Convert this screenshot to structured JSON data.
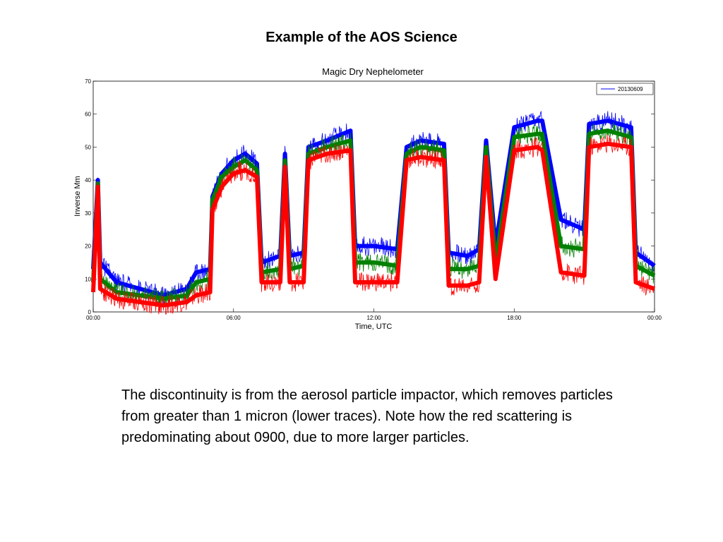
{
  "slide": {
    "title": "Example of the AOS Science",
    "caption": "The discontinuity is from the aerosol particle impactor, which removes particles from greater than 1 micron (lower traces). Note how the red scattering is predominating about 0900, due to more larger particles."
  },
  "chart_data": {
    "type": "line",
    "title": "Magic Dry Nephelometer",
    "xlabel": "Time, UTC",
    "ylabel": "Inverse Mm",
    "xlim": [
      0,
      24
    ],
    "ylim": [
      0,
      70
    ],
    "x_ticks": [
      {
        "value": 0,
        "label": "00:00"
      },
      {
        "value": 6,
        "label": "06:00"
      },
      {
        "value": 12,
        "label": "12:00"
      },
      {
        "value": 18,
        "label": "18:00"
      },
      {
        "value": 24,
        "label": "00:00"
      }
    ],
    "y_ticks": [
      0,
      10,
      20,
      30,
      40,
      50,
      60,
      70
    ],
    "legend": {
      "entries": [
        "20130609"
      ],
      "position": "top-right"
    },
    "colors": {
      "blue": "#0000ff",
      "green": "#008000",
      "red": "#ff0000"
    },
    "series": [
      {
        "color": "blue",
        "points": [
          [
            0,
            13
          ],
          [
            0.2,
            40
          ],
          [
            0.3,
            15
          ],
          [
            1,
            9
          ],
          [
            2,
            7
          ],
          [
            3,
            5
          ],
          [
            4,
            7
          ],
          [
            4.4,
            12
          ],
          [
            5,
            13
          ],
          [
            5.1,
            35
          ],
          [
            5.5,
            42
          ],
          [
            6,
            46
          ],
          [
            6.5,
            48
          ],
          [
            7,
            45
          ],
          [
            7.2,
            15
          ],
          [
            8,
            17
          ],
          [
            8.2,
            48
          ],
          [
            8.4,
            17
          ],
          [
            9,
            18
          ],
          [
            9.2,
            50
          ],
          [
            10,
            52
          ],
          [
            11,
            55
          ],
          [
            11.2,
            20
          ],
          [
            12,
            20
          ],
          [
            13,
            19
          ],
          [
            13.4,
            50
          ],
          [
            14,
            52
          ],
          [
            15,
            51
          ],
          [
            15.2,
            18
          ],
          [
            16,
            17
          ],
          [
            16.5,
            19
          ],
          [
            16.8,
            52
          ],
          [
            17.2,
            20
          ],
          [
            18,
            56
          ],
          [
            19,
            58
          ],
          [
            19.2,
            58
          ],
          [
            20,
            28
          ],
          [
            21,
            25
          ],
          [
            21.2,
            57
          ],
          [
            22,
            58
          ],
          [
            23,
            56
          ],
          [
            23.2,
            18
          ],
          [
            24,
            14
          ]
        ]
      },
      {
        "color": "green",
        "points": [
          [
            0,
            9
          ],
          [
            0.2,
            39
          ],
          [
            0.3,
            10
          ],
          [
            1,
            6
          ],
          [
            2,
            5
          ],
          [
            3,
            4
          ],
          [
            4,
            5
          ],
          [
            4.4,
            9
          ],
          [
            5,
            10
          ],
          [
            5.1,
            34
          ],
          [
            5.5,
            41
          ],
          [
            6,
            44
          ],
          [
            6.5,
            46
          ],
          [
            7,
            43
          ],
          [
            7.2,
            12
          ],
          [
            8,
            13
          ],
          [
            8.2,
            46
          ],
          [
            8.4,
            13
          ],
          [
            9,
            14
          ],
          [
            9.2,
            48
          ],
          [
            10,
            50
          ],
          [
            11,
            52
          ],
          [
            11.2,
            15
          ],
          [
            12,
            15
          ],
          [
            13,
            14
          ],
          [
            13.4,
            48
          ],
          [
            14,
            50
          ],
          [
            15,
            49
          ],
          [
            15.2,
            13
          ],
          [
            16,
            13
          ],
          [
            16.5,
            14
          ],
          [
            16.8,
            50
          ],
          [
            17.2,
            15
          ],
          [
            18,
            53
          ],
          [
            19,
            54
          ],
          [
            19.2,
            54
          ],
          [
            20,
            20
          ],
          [
            21,
            19
          ],
          [
            21.2,
            54
          ],
          [
            22,
            55
          ],
          [
            23,
            53
          ],
          [
            23.2,
            14
          ],
          [
            24,
            11
          ]
        ]
      },
      {
        "color": "red",
        "points": [
          [
            0,
            6
          ],
          [
            0.2,
            38
          ],
          [
            0.3,
            7
          ],
          [
            1,
            4
          ],
          [
            2,
            3
          ],
          [
            3,
            2
          ],
          [
            4,
            3
          ],
          [
            4.4,
            5
          ],
          [
            5,
            6
          ],
          [
            5.1,
            31
          ],
          [
            5.5,
            38
          ],
          [
            6,
            42
          ],
          [
            6.5,
            43
          ],
          [
            7,
            41
          ],
          [
            7.2,
            9
          ],
          [
            8,
            9
          ],
          [
            8.2,
            44
          ],
          [
            8.4,
            9
          ],
          [
            9,
            9
          ],
          [
            9.2,
            46
          ],
          [
            10,
            48
          ],
          [
            11,
            49
          ],
          [
            11.2,
            9
          ],
          [
            12,
            9
          ],
          [
            13,
            9
          ],
          [
            13.4,
            46
          ],
          [
            14,
            47
          ],
          [
            15,
            46
          ],
          [
            15.2,
            8
          ],
          [
            16,
            8
          ],
          [
            16.5,
            9
          ],
          [
            16.8,
            47
          ],
          [
            17.2,
            10
          ],
          [
            18,
            49
          ],
          [
            19,
            50
          ],
          [
            19.2,
            49
          ],
          [
            20,
            12
          ],
          [
            21,
            11
          ],
          [
            21.2,
            50
          ],
          [
            22,
            51
          ],
          [
            23,
            50
          ],
          [
            23.2,
            9
          ],
          [
            24,
            7
          ]
        ]
      }
    ]
  }
}
